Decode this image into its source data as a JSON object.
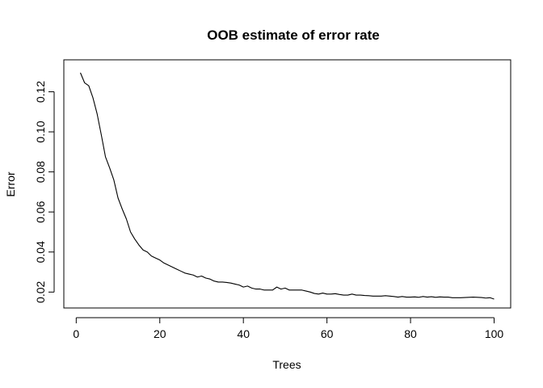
{
  "chart_data": {
    "type": "line",
    "title": "OOB estimate of error rate",
    "xlabel": "Trees",
    "ylabel": "Error",
    "xlim": [
      1,
      100
    ],
    "ylim": [
      0.0165,
      0.1295
    ],
    "x_ticks": [
      0,
      20,
      40,
      60,
      80,
      100
    ],
    "x_tick_labels": [
      "0",
      "20",
      "40",
      "60",
      "80",
      "100"
    ],
    "y_ticks": [
      0.02,
      0.04,
      0.06,
      0.08,
      0.1,
      0.12
    ],
    "y_tick_labels": [
      "0.02",
      "0.04",
      "0.06",
      "0.08",
      "0.10",
      "0.12"
    ],
    "grid": false,
    "series": [
      {
        "color": "#000000",
        "x": [
          1,
          2,
          3,
          4,
          5,
          6,
          7,
          8,
          9,
          10,
          11,
          12,
          13,
          14,
          15,
          16,
          17,
          18,
          19,
          20,
          21,
          22,
          23,
          24,
          25,
          26,
          27,
          28,
          29,
          30,
          31,
          32,
          33,
          34,
          35,
          36,
          37,
          38,
          39,
          40,
          41,
          42,
          43,
          44,
          45,
          46,
          47,
          48,
          49,
          50,
          51,
          52,
          53,
          54,
          55,
          56,
          57,
          58,
          59,
          60,
          61,
          62,
          63,
          64,
          65,
          66,
          67,
          68,
          69,
          70,
          71,
          72,
          73,
          74,
          75,
          76,
          77,
          78,
          79,
          80,
          81,
          82,
          83,
          84,
          85,
          86,
          87,
          88,
          89,
          90,
          91,
          92,
          93,
          94,
          95,
          96,
          97,
          98,
          99,
          100
        ],
        "y": [
          0.1295,
          0.1245,
          0.123,
          0.117,
          0.109,
          0.0985,
          0.0875,
          0.082,
          0.076,
          0.067,
          0.0615,
          0.0565,
          0.05,
          0.0465,
          0.0435,
          0.041,
          0.04,
          0.038,
          0.037,
          0.036,
          0.0345,
          0.0335,
          0.0325,
          0.0315,
          0.0305,
          0.0295,
          0.029,
          0.0285,
          0.0275,
          0.028,
          0.027,
          0.0265,
          0.0255,
          0.025,
          0.025,
          0.0248,
          0.0245,
          0.024,
          0.0235,
          0.0225,
          0.023,
          0.022,
          0.0215,
          0.0215,
          0.021,
          0.021,
          0.021,
          0.0225,
          0.0215,
          0.022,
          0.021,
          0.021,
          0.021,
          0.021,
          0.0205,
          0.02,
          0.0193,
          0.019,
          0.0195,
          0.019,
          0.019,
          0.0192,
          0.0188,
          0.0185,
          0.0185,
          0.019,
          0.0185,
          0.0185,
          0.0183,
          0.0182,
          0.018,
          0.018,
          0.018,
          0.0182,
          0.018,
          0.0178,
          0.0175,
          0.0178,
          0.0175,
          0.0175,
          0.0176,
          0.0174,
          0.0178,
          0.0175,
          0.0177,
          0.0174,
          0.0176,
          0.0175,
          0.0175,
          0.0172,
          0.0172,
          0.0172,
          0.0173,
          0.0174,
          0.0175,
          0.0174,
          0.0173,
          0.017,
          0.0172,
          0.0165
        ]
      }
    ]
  }
}
